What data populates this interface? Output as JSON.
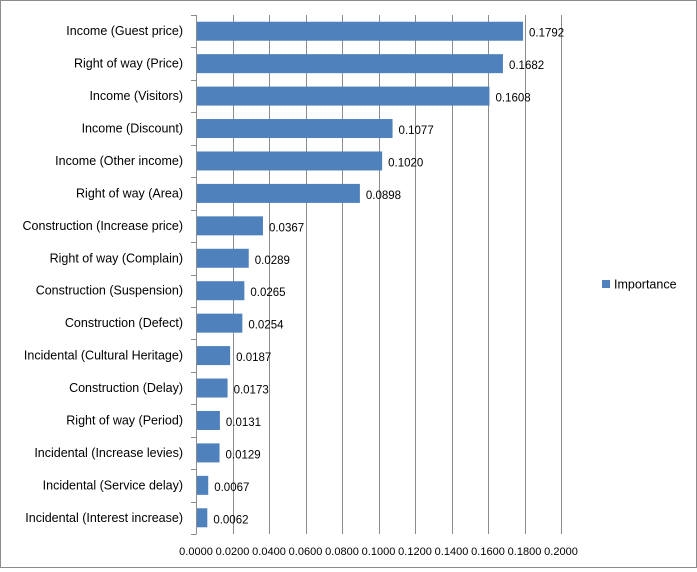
{
  "chart_data": {
    "type": "bar",
    "orientation": "horizontal",
    "categories": [
      "Income (Guest price)",
      "Right of way (Price)",
      "Income (Visitors)",
      "Income (Discount)",
      "Income (Other income)",
      "Right of way (Area)",
      "Construction (Increase price)",
      "Right of way (Complain)",
      "Construction (Suspension)",
      "Construction (Defect)",
      "Incidental (Cultural Heritage)",
      "Construction (Delay)",
      "Right of way (Period)",
      "Incidental (Increase levies)",
      "Incidental (Service delay)",
      "Incidental (Interest increase)"
    ],
    "series": [
      {
        "name": "Importance",
        "color": "#4f81bd",
        "values": [
          0.1792,
          0.1682,
          0.1608,
          0.1077,
          0.102,
          0.0898,
          0.0367,
          0.0289,
          0.0265,
          0.0254,
          0.0187,
          0.0173,
          0.0131,
          0.0129,
          0.0067,
          0.0062
        ]
      }
    ],
    "value_labels": [
      "0.1792",
      "0.1682",
      "0.1608",
      "0.1077",
      "0.1020",
      "0.0898",
      "0.0367",
      "0.0289",
      "0.0265",
      "0.0254",
      "0.0187",
      "0.0173",
      "0.0131",
      "0.0129",
      "0.0067",
      "0.0062"
    ],
    "xlim": [
      0,
      0.2
    ],
    "x_ticks": [
      0,
      0.02,
      0.04,
      0.06,
      0.08,
      0.1,
      0.12,
      0.14,
      0.16,
      0.18,
      0.2
    ],
    "x_tick_labels": [
      "0.0000",
      "0.0200",
      "0.0400",
      "0.0600",
      "0.0800",
      "0.1000",
      "0.1200",
      "0.1400",
      "0.1600",
      "0.1800",
      "0.2000"
    ],
    "title": "",
    "xlabel": "",
    "ylabel": "",
    "grid": "vertical",
    "legend_position": "right"
  }
}
